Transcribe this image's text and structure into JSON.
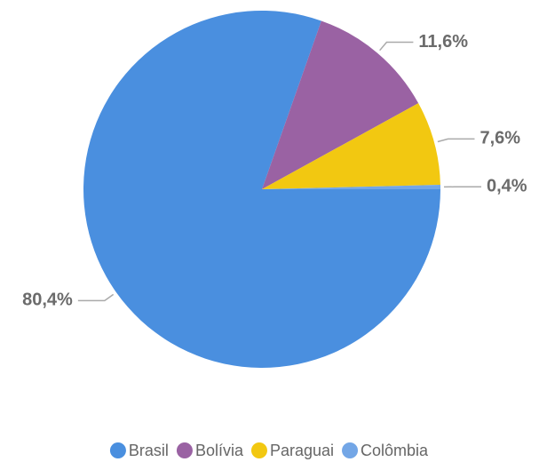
{
  "chart_data": {
    "type": "pie",
    "categories": [
      "Brasil",
      "Bolívia",
      "Paraguai",
      "Colômbia"
    ],
    "values": [
      80.4,
      11.6,
      7.6,
      0.4
    ],
    "value_labels": [
      "80,4%",
      "11,6%",
      "7,6%",
      "0,4%"
    ],
    "colors": [
      "#4a8fdf",
      "#9a62a3",
      "#f2c811",
      "#73a6e6"
    ],
    "legend": "bottom"
  }
}
